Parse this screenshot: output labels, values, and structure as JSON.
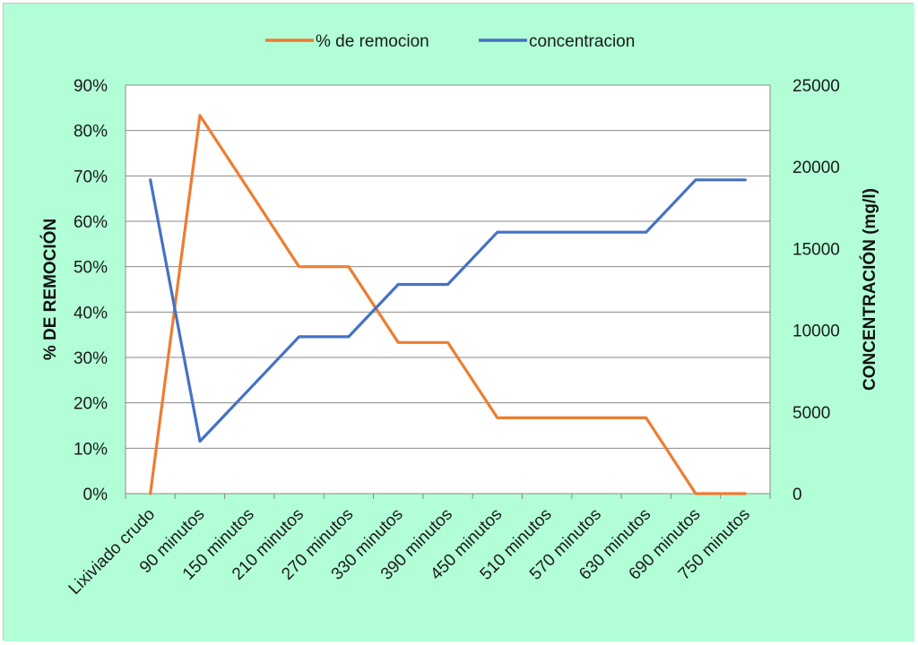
{
  "colors": {
    "background": "#b2ffd7",
    "plot_area": "#ffffff",
    "gridline": "#888888",
    "removal_series": "#ed7d31",
    "concentration_series": "#4472c4"
  },
  "chart_data": {
    "type": "line",
    "title": "",
    "categories": [
      "Lixiviado crudo",
      "90 minutos",
      "150 minutos",
      "210 minutos",
      "270 minutos",
      "330 minutos",
      "390 minutos",
      "450 minutos",
      "510 minutos",
      "570 minutos",
      "630 minutos",
      "690 minutos",
      "750 minutos"
    ],
    "left_axis": {
      "label": "% DE REMOCIÓN",
      "ylim": [
        0,
        0.9
      ],
      "ticks": [
        0,
        0.1,
        0.2,
        0.3,
        0.4,
        0.5,
        0.6,
        0.7,
        0.8,
        0.9
      ],
      "tick_labels": [
        "0%",
        "10%",
        "20%",
        "30%",
        "40%",
        "50%",
        "60%",
        "70%",
        "80%",
        "90%"
      ]
    },
    "right_axis": {
      "label": "CONCENTRACIÓN (mg/l)",
      "ylim": [
        0,
        25000
      ],
      "ticks": [
        0,
        5000,
        10000,
        15000,
        20000,
        25000
      ],
      "tick_labels": [
        "0",
        "5000",
        "10000",
        "15000",
        "20000",
        "25000"
      ]
    },
    "series": [
      {
        "name": "% de remocion",
        "axis": "left",
        "color": "#ed7d31",
        "values": [
          0,
          0.833,
          0.667,
          0.5,
          0.5,
          0.333,
          0.333,
          0.167,
          0.167,
          0.167,
          0.167,
          0,
          0
        ]
      },
      {
        "name": "concentracion",
        "axis": "right",
        "color": "#4472c4",
        "values": [
          19200,
          3200,
          6400,
          9600,
          9600,
          12800,
          12800,
          16000,
          16000,
          16000,
          16000,
          19200,
          19200
        ]
      }
    ],
    "grid": true,
    "legend": "top-center"
  }
}
